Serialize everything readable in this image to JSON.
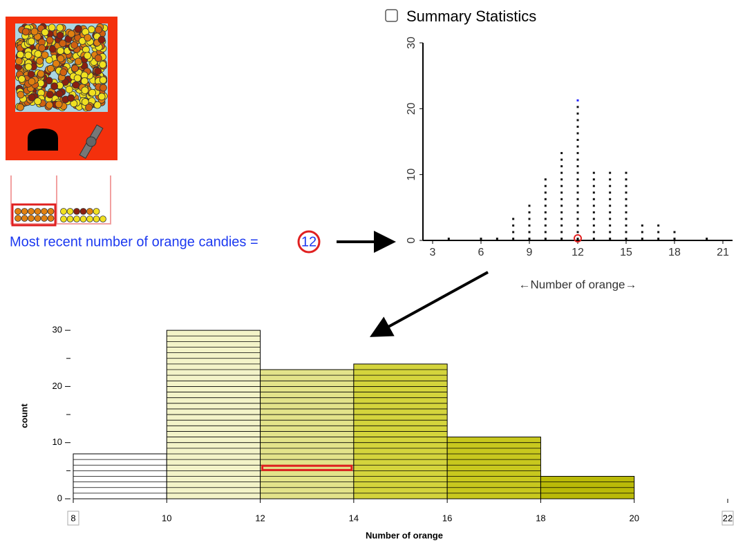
{
  "summary_label": "Summary Statistics",
  "recent_label": "Most recent number of orange candies =",
  "recent_value": "12",
  "chart_data": [
    {
      "type": "dot",
      "x_label": "←Number of orange→",
      "x": [
        4,
        6,
        7,
        8,
        9,
        10,
        11,
        12,
        13,
        14,
        15,
        16,
        17,
        18,
        20
      ],
      "values": [
        1,
        1,
        1,
        4,
        6,
        10,
        14,
        22,
        11,
        11,
        11,
        3,
        3,
        2,
        1
      ],
      "color": "#111111",
      "top_color": "#2222ff",
      "xlim": [
        2.4,
        21.6
      ],
      "xticks": [
        3,
        6,
        9,
        12,
        15,
        18,
        21
      ],
      "ylim": [
        0,
        30
      ],
      "yticks": [
        0,
        10,
        20,
        30
      ]
    },
    {
      "type": "histogram",
      "x_label": "Number of orange",
      "y_label": "count",
      "bins": [
        8,
        10,
        12,
        14,
        16,
        18,
        20
      ],
      "values": [
        8,
        30,
        23,
        24,
        11,
        4
      ],
      "colors": [
        "#ffffff",
        "#f3f3c8",
        "#e3e38a",
        "#d4d43c",
        "#c8c81e",
        "#baba08"
      ],
      "xlim": [
        8,
        22
      ],
      "xticks": [
        8,
        10,
        12,
        14,
        16,
        18,
        20,
        22
      ],
      "ylim": [
        0,
        31
      ],
      "yticks": [
        0,
        10,
        20,
        30
      ],
      "yminorticks": [
        5,
        15,
        25
      ],
      "highlight": {
        "bin": 2,
        "level": 6,
        "color": "#e02020"
      }
    }
  ]
}
